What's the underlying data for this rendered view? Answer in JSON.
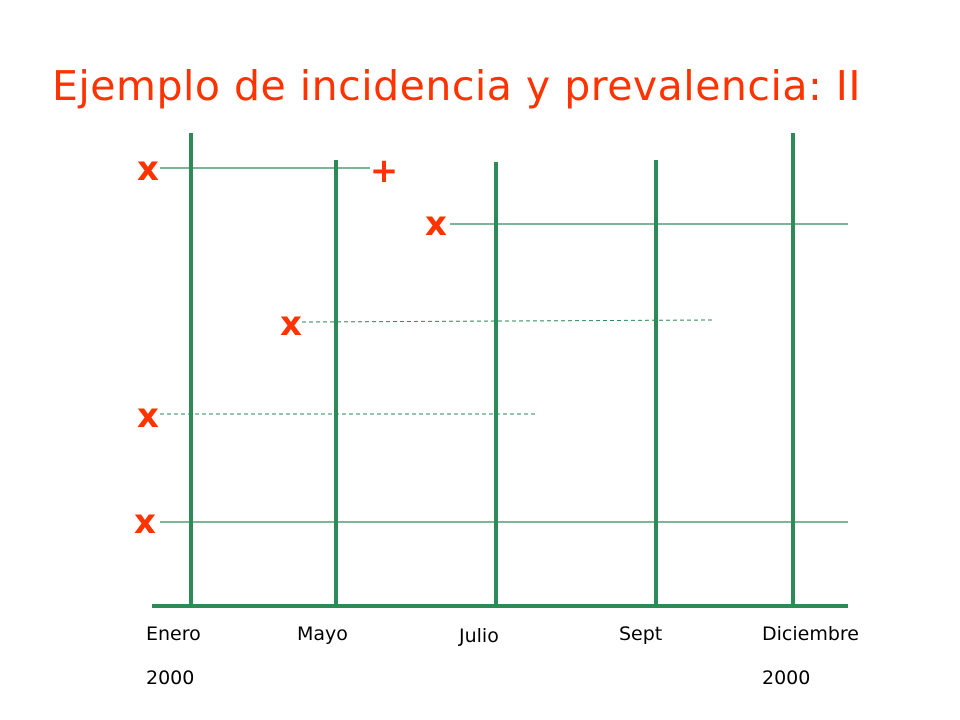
{
  "title": "Ejemplo de incidencia y prevalencia: II",
  "colors": {
    "title": "#ff3300",
    "marker": "#ff3300",
    "line": "#2e8b57",
    "axis_label": "#000000"
  },
  "time_axis": {
    "labels": [
      {
        "month": "Enero",
        "year": "2000"
      },
      {
        "month": "Mayo",
        "year": ""
      },
      {
        "month": "Julio",
        "year": ""
      },
      {
        "month": "Sept",
        "year": ""
      },
      {
        "month": "Diciembre",
        "year": "2000"
      }
    ]
  },
  "cases": [
    {
      "onset_marker": "x",
      "end_marker": "+",
      "line_style": "solid"
    },
    {
      "onset_marker": "x",
      "end_marker": "",
      "line_style": "solid"
    },
    {
      "onset_marker": "x",
      "end_marker": "",
      "line_style": "dashed"
    },
    {
      "onset_marker": "x",
      "end_marker": "",
      "line_style": "dashed"
    },
    {
      "onset_marker": "x",
      "end_marker": "",
      "line_style": "solid"
    }
  ]
}
